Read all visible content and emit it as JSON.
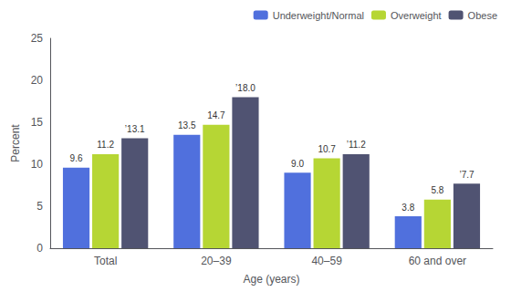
{
  "chart_data": {
    "type": "bar",
    "categories": [
      "Total",
      "20–39",
      "40–59",
      "60 and over"
    ],
    "series": [
      {
        "name": "Underweight/Normal",
        "values": [
          9.6,
          13.5,
          9.0,
          3.8
        ],
        "value_labels": [
          "9.6",
          "13.5",
          "9.0",
          "3.8"
        ]
      },
      {
        "name": "Overweight",
        "values": [
          11.2,
          14.7,
          10.7,
          5.8
        ],
        "value_labels": [
          "11.2",
          "14.7",
          "10.7",
          "5.8"
        ]
      },
      {
        "name": "Obese",
        "values": [
          13.1,
          18.0,
          11.2,
          7.7
        ],
        "value_labels": [
          "’13.1",
          "’18.0",
          "’11.2",
          "’7.7"
        ]
      }
    ],
    "xlabel": "Age (years)",
    "ylabel": "Percent",
    "ylim": [
      0,
      25
    ],
    "yticks": [
      0,
      5,
      10,
      15,
      20,
      25
    ],
    "data_labels": true,
    "legend": "upper right",
    "grid": false
  }
}
